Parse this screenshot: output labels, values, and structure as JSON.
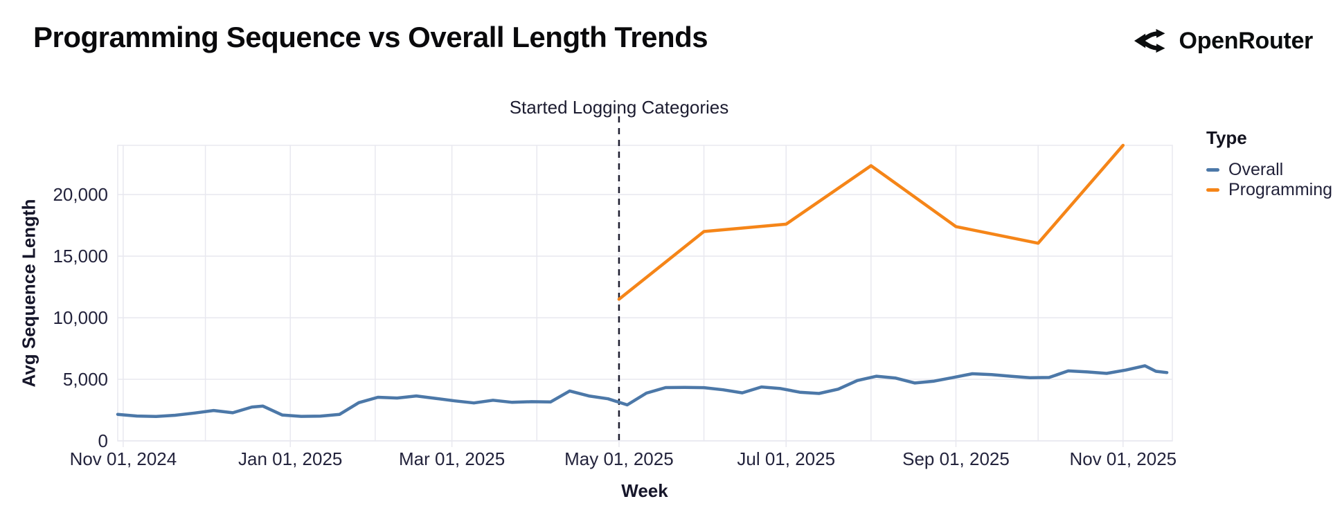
{
  "header": {
    "title": "Programming Sequence vs Overall Length Trends",
    "brand": "OpenRouter"
  },
  "chart_data": {
    "type": "line",
    "title": "Programming Sequence vs Overall Length Trends",
    "xlabel": "Week",
    "ylabel": "Avg Sequence Length",
    "ylim": [
      0,
      24000
    ],
    "x_domain": [
      "2024-10-30",
      "2025-11-19"
    ],
    "grid": true,
    "background": "#ffffff",
    "gridline_color": "#e8e8ef",
    "tick_color": "#23233c",
    "yticks": [
      {
        "value": 0,
        "label": "0"
      },
      {
        "value": 5000,
        "label": "5,000"
      },
      {
        "value": 10000,
        "label": "10,000"
      },
      {
        "value": 15000,
        "label": "15,000"
      },
      {
        "value": 20000,
        "label": "20,000"
      }
    ],
    "x_gridlines": [
      "2024-11-01",
      "2024-12-01",
      "2025-01-01",
      "2025-02-01",
      "2025-03-01",
      "2025-04-01",
      "2025-05-01",
      "2025-06-01",
      "2025-07-01",
      "2025-08-01",
      "2025-09-01",
      "2025-10-01",
      "2025-11-01"
    ],
    "xticks": [
      {
        "date": "2024-11-01",
        "label": "Nov 01, 2024"
      },
      {
        "date": "2025-01-01",
        "label": "Jan 01, 2025"
      },
      {
        "date": "2025-03-01",
        "label": "Mar 01, 2025"
      },
      {
        "date": "2025-05-01",
        "label": "May 01, 2025"
      },
      {
        "date": "2025-07-01",
        "label": "Jul 01, 2025"
      },
      {
        "date": "2025-09-01",
        "label": "Sep 01, 2025"
      },
      {
        "date": "2025-11-01",
        "label": "Nov 01, 2025"
      }
    ],
    "annotation": {
      "label": "Started Logging Categories",
      "x": "2025-05-01",
      "style": "dashed-vertical",
      "color": "#1c1c2e"
    },
    "legend": {
      "title": "Type",
      "position": "right",
      "entries": [
        {
          "label": "Overall",
          "color": "#4c78a8"
        },
        {
          "label": "Programming",
          "color": "#f58518"
        }
      ]
    },
    "series": [
      {
        "name": "Overall",
        "color": "#4c78a8",
        "points": [
          [
            "2024-10-30",
            2150
          ],
          [
            "2024-11-06",
            2020
          ],
          [
            "2024-11-13",
            1980
          ],
          [
            "2024-11-20",
            2080
          ],
          [
            "2024-11-27",
            2260
          ],
          [
            "2024-12-04",
            2470
          ],
          [
            "2024-12-11",
            2280
          ],
          [
            "2024-12-18",
            2750
          ],
          [
            "2024-12-22",
            2820
          ],
          [
            "2024-12-29",
            2100
          ],
          [
            "2025-01-05",
            1990
          ],
          [
            "2025-01-12",
            2010
          ],
          [
            "2025-01-19",
            2150
          ],
          [
            "2025-01-26",
            3100
          ],
          [
            "2025-02-02",
            3540
          ],
          [
            "2025-02-09",
            3480
          ],
          [
            "2025-02-16",
            3650
          ],
          [
            "2025-02-23",
            3450
          ],
          [
            "2025-03-02",
            3250
          ],
          [
            "2025-03-09",
            3080
          ],
          [
            "2025-03-16",
            3300
          ],
          [
            "2025-03-23",
            3130
          ],
          [
            "2025-03-30",
            3180
          ],
          [
            "2025-04-06",
            3160
          ],
          [
            "2025-04-13",
            4050
          ],
          [
            "2025-04-20",
            3650
          ],
          [
            "2025-04-27",
            3420
          ],
          [
            "2025-05-04",
            2920
          ],
          [
            "2025-05-11",
            3880
          ],
          [
            "2025-05-18",
            4330
          ],
          [
            "2025-05-25",
            4340
          ],
          [
            "2025-06-01",
            4320
          ],
          [
            "2025-06-08",
            4150
          ],
          [
            "2025-06-15",
            3900
          ],
          [
            "2025-06-22",
            4380
          ],
          [
            "2025-06-29",
            4250
          ],
          [
            "2025-07-06",
            3950
          ],
          [
            "2025-07-13",
            3850
          ],
          [
            "2025-07-20",
            4200
          ],
          [
            "2025-07-27",
            4900
          ],
          [
            "2025-08-03",
            5250
          ],
          [
            "2025-08-10",
            5100
          ],
          [
            "2025-08-17",
            4700
          ],
          [
            "2025-08-24",
            4850
          ],
          [
            "2025-08-31",
            5150
          ],
          [
            "2025-09-07",
            5450
          ],
          [
            "2025-09-14",
            5380
          ],
          [
            "2025-09-21",
            5250
          ],
          [
            "2025-09-28",
            5130
          ],
          [
            "2025-10-05",
            5150
          ],
          [
            "2025-10-12",
            5680
          ],
          [
            "2025-10-19",
            5600
          ],
          [
            "2025-10-26",
            5480
          ],
          [
            "2025-11-02",
            5750
          ],
          [
            "2025-11-09",
            6100
          ],
          [
            "2025-11-13",
            5650
          ],
          [
            "2025-11-17",
            5550
          ]
        ]
      },
      {
        "name": "Programming",
        "color": "#f58518",
        "points": [
          [
            "2025-05-01",
            11500
          ],
          [
            "2025-06-01",
            17000
          ],
          [
            "2025-07-01",
            17600
          ],
          [
            "2025-08-01",
            22350
          ],
          [
            "2025-09-01",
            17400
          ],
          [
            "2025-10-01",
            16050
          ],
          [
            "2025-11-01",
            24000
          ]
        ]
      }
    ]
  }
}
